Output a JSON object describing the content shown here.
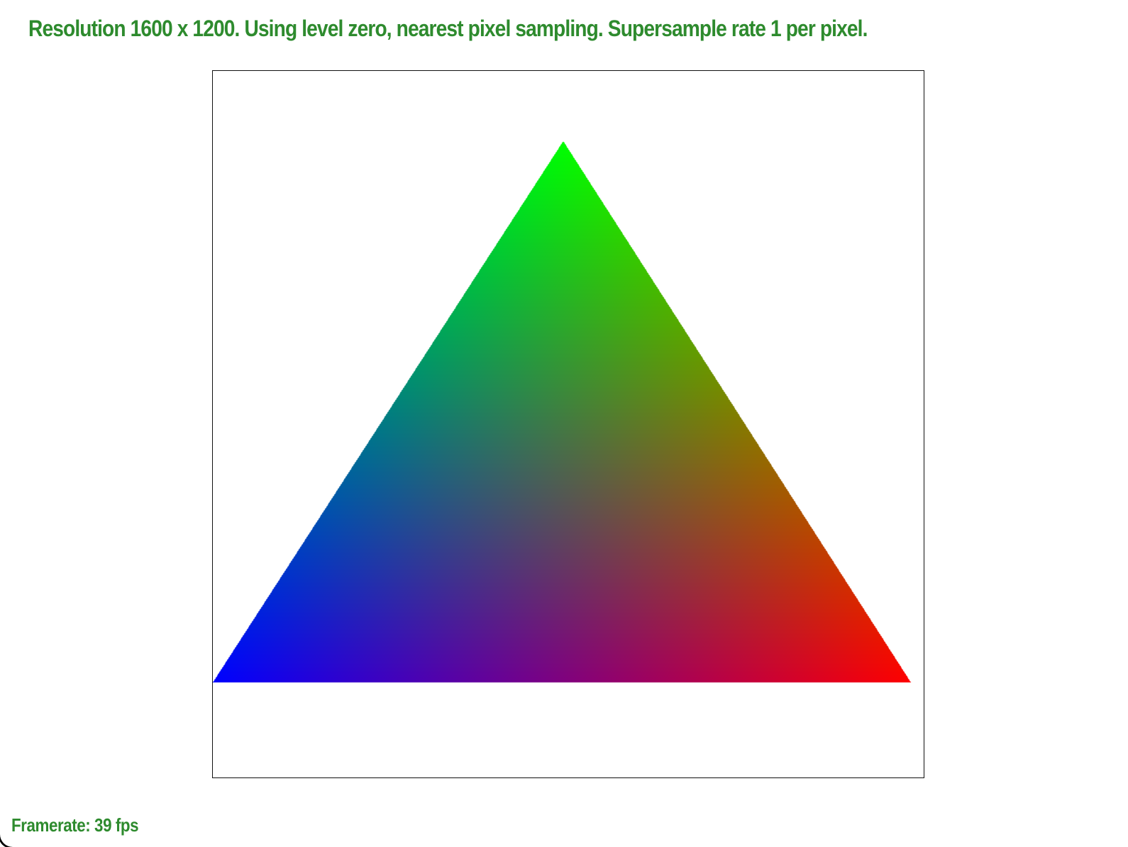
{
  "status": {
    "resolution_text": "Resolution 1600 x 1200. Using level zero, nearest pixel sampling. Supersample rate 1 per pixel."
  },
  "footer": {
    "framerate_text": "Framerate: 39 fps"
  },
  "scene": {
    "background_color": "#ffffff",
    "triangle": {
      "vertices": [
        {
          "name": "top",
          "color": "#00ff00"
        },
        {
          "name": "bottom-left",
          "color": "#0000ff"
        },
        {
          "name": "bottom-right",
          "color": "#ff0000"
        }
      ]
    }
  },
  "colors": {
    "text": "#2e8b2e",
    "viewport_border": "#111111"
  }
}
